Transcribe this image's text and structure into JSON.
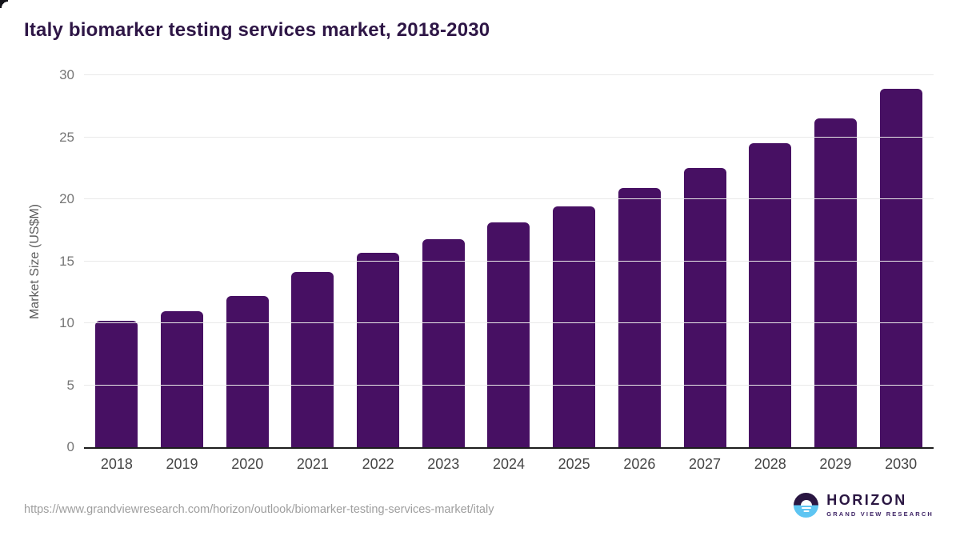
{
  "title": "Italy biomarker testing services market, 2018-2030",
  "footer": {
    "source_url": "https://www.grandviewresearch.com/horizon/outlook/biomarker-testing-services-market/italy",
    "logo": {
      "name": "HORIZON",
      "subtitle": "GRAND VIEW RESEARCH"
    }
  },
  "colors": {
    "bar": "#471063",
    "title_text": "#2e1646",
    "gridline": "#e9e9e9",
    "axis_line": "#1d1d1d",
    "y_tick_text": "#767676",
    "x_tick_text": "#454545",
    "url_text": "#9e9e9e",
    "logo_dark": "#2a1642",
    "logo_blue": "#5ec5f2"
  },
  "chart_data": {
    "type": "bar",
    "title": "Italy biomarker testing services market, 2018-2030",
    "categories": [
      "2018",
      "2019",
      "2020",
      "2021",
      "2022",
      "2023",
      "2024",
      "2025",
      "2026",
      "2027",
      "2028",
      "2029",
      "2030"
    ],
    "values": [
      10.2,
      11.0,
      12.2,
      14.1,
      15.7,
      16.8,
      18.1,
      19.4,
      20.9,
      22.5,
      24.5,
      26.5,
      28.9
    ],
    "xlabel": "",
    "ylabel": "Market Size (US$M)",
    "ylim": [
      0,
      30
    ],
    "yticks": [
      0,
      5,
      10,
      15,
      20,
      25,
      30
    ],
    "grid": true,
    "legend_position": "none",
    "bar_color": "#471063"
  }
}
